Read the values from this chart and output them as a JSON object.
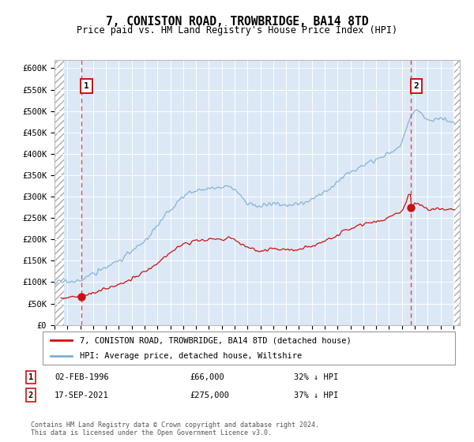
{
  "title": "7, CONISTON ROAD, TROWBRIDGE, BA14 8TD",
  "subtitle": "Price paid vs. HM Land Registry's House Price Index (HPI)",
  "xlim_start": 1994.0,
  "xlim_end": 2025.5,
  "ylim": [
    0,
    620000
  ],
  "yticks": [
    0,
    50000,
    100000,
    150000,
    200000,
    250000,
    300000,
    350000,
    400000,
    450000,
    500000,
    550000,
    600000
  ],
  "ytick_labels": [
    "£0",
    "£50K",
    "£100K",
    "£150K",
    "£200K",
    "£250K",
    "£300K",
    "£350K",
    "£400K",
    "£450K",
    "£500K",
    "£550K",
    "£600K"
  ],
  "sale1_date": 1996.09,
  "sale1_price": 66000,
  "sale1_label": "1",
  "sale2_date": 2021.71,
  "sale2_price": 275000,
  "sale2_label": "2",
  "hpi_color": "#7aaed6",
  "price_color": "#cc1111",
  "vline_color": "#ee4444",
  "annotation_box_color": "#cc1111",
  "background_plot": "#dce8f5",
  "legend_label_price": "7, CONISTON ROAD, TROWBRIDGE, BA14 8TD (detached house)",
  "legend_label_hpi": "HPI: Average price, detached house, Wiltshire",
  "note1_label": "1",
  "note1_date": "02-FEB-1996",
  "note1_price": "£66,000",
  "note1_hpi": "32% ↓ HPI",
  "note2_label": "2",
  "note2_date": "17-SEP-2021",
  "note2_price": "£275,000",
  "note2_hpi": "37% ↓ HPI",
  "footer": "Contains HM Land Registry data © Crown copyright and database right 2024.\nThis data is licensed under the Open Government Licence v3.0."
}
